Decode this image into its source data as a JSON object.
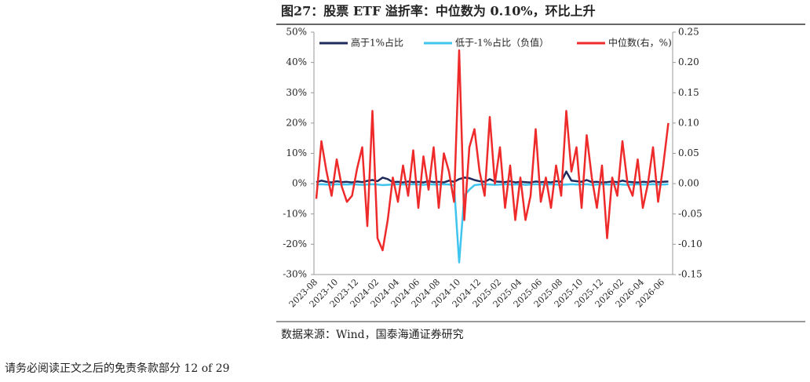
{
  "chart_data": {
    "type": "line",
    "title": "图27：股票 ETF 溢折率：中位数为 0.10%，环比上升",
    "source": "数据来源：Wind，国泰海通证券研究",
    "categories": [
      "2023-08",
      null,
      null,
      null,
      "2023-10",
      null,
      null,
      null,
      "2023-12",
      null,
      null,
      null,
      "2024-02",
      null,
      null,
      null,
      "2024-04",
      null,
      null,
      null,
      "2024-06",
      null,
      null,
      null,
      "2024-08",
      null,
      null,
      null,
      "2024-10",
      null,
      null,
      null,
      "2024-12",
      null,
      null,
      null,
      "2025-02",
      null,
      null,
      null,
      "2025-04",
      null,
      null,
      null,
      "2025-06",
      null,
      null,
      null,
      "2025-08",
      null,
      null,
      null,
      "2025-10",
      null,
      null,
      null,
      "2025-12",
      null,
      null,
      null,
      "2026-02",
      null,
      null,
      null,
      "2026-04",
      null,
      null,
      null,
      "2026-06",
      null
    ],
    "ylim": [
      -30,
      50
    ],
    "yticks": [
      {
        "value": -30,
        "label": "-30%"
      },
      {
        "value": -20,
        "label": "-20%"
      },
      {
        "value": -10,
        "label": "-10%"
      },
      {
        "value": 0,
        "label": "0%"
      },
      {
        "value": 10,
        "label": "10%"
      },
      {
        "value": 20,
        "label": "20%"
      },
      {
        "value": 30,
        "label": "30%"
      },
      {
        "value": 40,
        "label": "40%"
      },
      {
        "value": 50,
        "label": "50%"
      }
    ],
    "y2lim": [
      -0.15,
      0.25
    ],
    "y2ticks": [
      {
        "value": -0.15,
        "label": "-0.15"
      },
      {
        "value": -0.1,
        "label": "-0.10"
      },
      {
        "value": -0.05,
        "label": "-0.05"
      },
      {
        "value": 0,
        "label": "0.00"
      },
      {
        "value": 0.05,
        "label": "0.05"
      },
      {
        "value": 0.1,
        "label": "0.10"
      },
      {
        "value": 0.15,
        "label": "0.15"
      },
      {
        "value": 0.2,
        "label": "0.20"
      },
      {
        "value": 0.25,
        "label": "0.25"
      }
    ],
    "legend": "top",
    "series": [
      {
        "name": "高于1%占比",
        "color": "#1f2a5c",
        "values": [
          0.5,
          1,
          0.6,
          0.4,
          0.8,
          0.5,
          0.6,
          0.4,
          0.7,
          0.5,
          0.9,
          1.2,
          0.8,
          2,
          1.5,
          0.5,
          0.6,
          0.4,
          0.7,
          0.5,
          0.6,
          0.4,
          0.8,
          0.5,
          0.6,
          0.4,
          1,
          0.6,
          1.5,
          2,
          1.8,
          1.2,
          0.8,
          0.6,
          1.5,
          0.7,
          0.6,
          0.5,
          0.8,
          0.4,
          0.6,
          0.5,
          0.4,
          0.7,
          0.5,
          0.6,
          0.4,
          0.8,
          0.6,
          4,
          1,
          0.8,
          0.6,
          1.2,
          0.5,
          0.6,
          0.4,
          0.5,
          0.7,
          0.5,
          1,
          0.6,
          0.5,
          0.4,
          0.6,
          0.5,
          0.8,
          0.5,
          0.6,
          0.7
        ]
      },
      {
        "name": "低于-1%占比（负值）",
        "color": "#3ec4ee",
        "values": [
          -0.3,
          -0.2,
          -0.3,
          -0.4,
          -0.2,
          -0.3,
          -0.3,
          -0.2,
          -0.3,
          -0.4,
          -0.3,
          -0.2,
          -0.3,
          -0.5,
          -0.4,
          -0.3,
          -0.2,
          -0.3,
          -0.3,
          -0.2,
          -0.3,
          -0.4,
          -0.2,
          -0.3,
          -0.3,
          -0.2,
          -0.3,
          -0.5,
          -26,
          -4,
          -2,
          -0.5,
          -0.3,
          -0.2,
          -0.3,
          -0.4,
          -0.3,
          -0.2,
          -0.3,
          -0.3,
          -0.2,
          -0.4,
          -0.3,
          -0.2,
          -0.3,
          -0.3,
          -0.2,
          -0.3,
          -0.4,
          -0.3,
          -0.2,
          -0.3,
          -0.3,
          -0.2,
          -0.4,
          -0.3,
          -0.2,
          -0.3,
          -0.3,
          -0.2,
          -0.3,
          -0.4,
          -0.3,
          -0.2,
          -0.3,
          -0.3,
          -0.2,
          -0.3,
          -0.3,
          -0.2
        ]
      },
      {
        "name": "中位数(右，%)",
        "color": "#ee2a2a",
        "axis": "y2",
        "values": [
          -0.025,
          0.07,
          0.02,
          -0.02,
          0.04,
          -0.005,
          -0.03,
          -0.02,
          0.025,
          0.06,
          -0.07,
          0.12,
          -0.09,
          -0.11,
          -0.06,
          0.01,
          -0.03,
          0.03,
          -0.02,
          0.055,
          -0.04,
          0.045,
          -0.01,
          0.06,
          -0.04,
          0.05,
          0.02,
          -0.03,
          0.22,
          -0.06,
          0.06,
          0.09,
          0.02,
          -0.02,
          0.11,
          0,
          0.06,
          -0.04,
          0.03,
          -0.06,
          0.01,
          -0.06,
          -0.02,
          0.09,
          -0.03,
          0.01,
          -0.04,
          0.03,
          -0.02,
          0.12,
          0.02,
          0.06,
          -0.04,
          0.08,
          0.01,
          -0.04,
          0.03,
          -0.09,
          0.01,
          -0.02,
          0.07,
          0,
          -0.02,
          0.04,
          -0.04,
          0,
          0.06,
          -0.03,
          0.03,
          0.1
        ]
      }
    ]
  },
  "page_footer": "请务必阅读正文之后的免责条款部分 12 of 29"
}
